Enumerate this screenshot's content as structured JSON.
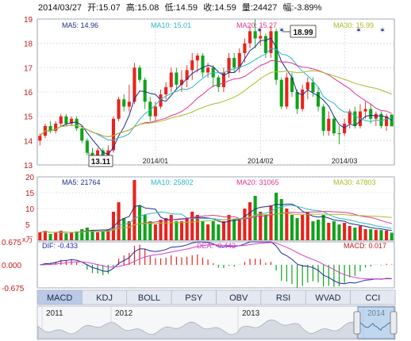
{
  "header": {
    "date": "2014/03/27",
    "open_label": "开:",
    "open": "15.07",
    "high_label": "高:",
    "high": "15.08",
    "low_label": "低:",
    "low": "14.59",
    "close_label": "收:",
    "close": "14.59",
    "volume_label": "量:",
    "volume": "24427",
    "change_label": "幅:",
    "change": "-3.89%"
  },
  "colors": {
    "up": "#e8231c",
    "down": "#10a31c",
    "ma5": "#1a2e8c",
    "ma10": "#2bb7c8",
    "ma20": "#e0358f",
    "ma30": "#aabb22",
    "grid": "#c7cbd6",
    "axis_text": "#c41a1a",
    "dif": "#1c2aa8",
    "dea": "#d940c8"
  },
  "price_panel": {
    "ma_labels": [
      {
        "label": "MA5: 14.96",
        "color": "#1a2e8c"
      },
      {
        "label": "MA10: 15.01",
        "color": "#2bb7c8"
      },
      {
        "label": "MA20: 15.27",
        "color": "#e0358f"
      },
      {
        "label": "MA30: 15.99",
        "color": "#aabb22"
      }
    ],
    "high_marker": "18.99",
    "low_marker": "13.11",
    "y_ticks": [
      "19",
      "18",
      "17",
      "16",
      "15",
      "14",
      "13"
    ],
    "x_ticks": [
      "2014/01",
      "2014/02",
      "2014/03"
    ]
  },
  "volume_panel": {
    "ma_labels": [
      {
        "label": "MA5: 21764",
        "color": "#1a2e8c"
      },
      {
        "label": "MA10: 25802",
        "color": "#2bb7c8"
      },
      {
        "label": "MA20: 31065",
        "color": "#e0358f"
      },
      {
        "label": "MA30: 47803",
        "color": "#aabb22"
      }
    ],
    "y_ticks": [
      "20",
      "15",
      "10",
      "5"
    ],
    "unit": "x万"
  },
  "macd_panel": {
    "dif_label": "DIF: -0.433",
    "dea_label": "DEA: -0.442",
    "macd_label": "MACD: 0.017",
    "y_ticks": [
      "0.675",
      "0.000",
      "-0.675"
    ]
  },
  "tabs": [
    {
      "label": "MACD",
      "active": true
    },
    {
      "label": "KDJ",
      "active": false
    },
    {
      "label": "BOLL",
      "active": false
    },
    {
      "label": "PSY",
      "active": false
    },
    {
      "label": "OBV",
      "active": false
    },
    {
      "label": "RSI",
      "active": false
    },
    {
      "label": "WVAD",
      "active": false
    },
    {
      "label": "CCI",
      "active": false
    }
  ],
  "timeline": {
    "years": [
      "2011",
      "2012",
      "2013",
      "2014"
    ]
  },
  "chart_data": {
    "type": "candlestick",
    "x_range": [
      "2013/12",
      "2014/03/27"
    ],
    "price_ylim": [
      13,
      19
    ],
    "candles": [
      [
        14.0,
        14.2,
        13.8,
        14.3,
        1
      ],
      [
        14.2,
        14.6,
        14.1,
        14.7,
        1
      ],
      [
        14.6,
        14.4,
        14.3,
        14.8,
        0
      ],
      [
        14.4,
        14.7,
        14.3,
        14.8,
        1
      ],
      [
        14.7,
        15.0,
        14.6,
        15.1,
        1
      ],
      [
        15.0,
        14.7,
        14.6,
        15.1,
        0
      ],
      [
        14.7,
        14.9,
        14.6,
        15.0,
        1
      ],
      [
        14.9,
        14.5,
        14.4,
        15.0,
        0
      ],
      [
        14.5,
        14.0,
        13.9,
        14.6,
        0
      ],
      [
        14.0,
        13.5,
        13.4,
        14.1,
        0
      ],
      [
        13.5,
        13.3,
        13.2,
        13.7,
        0
      ],
      [
        13.3,
        13.6,
        13.2,
        13.7,
        1
      ],
      [
        13.6,
        13.2,
        13.11,
        13.7,
        0
      ],
      [
        13.2,
        13.6,
        13.15,
        13.8,
        1
      ],
      [
        13.6,
        14.9,
        13.5,
        15.0,
        1
      ],
      [
        14.9,
        15.7,
        14.8,
        15.8,
        1
      ],
      [
        15.7,
        15.4,
        15.2,
        15.9,
        0
      ],
      [
        15.4,
        15.6,
        15.2,
        16.3,
        1
      ],
      [
        15.6,
        17.0,
        15.5,
        17.2,
        1
      ],
      [
        17.0,
        16.5,
        16.4,
        17.1,
        0
      ],
      [
        16.5,
        15.6,
        15.3,
        16.6,
        0
      ],
      [
        15.6,
        15.0,
        14.8,
        15.8,
        0
      ],
      [
        15.0,
        15.4,
        14.8,
        15.6,
        1
      ],
      [
        15.4,
        15.9,
        15.3,
        16.1,
        1
      ],
      [
        15.9,
        16.2,
        15.7,
        16.4,
        1
      ],
      [
        16.2,
        16.8,
        16.0,
        17.0,
        1
      ],
      [
        16.8,
        16.3,
        16.1,
        17.0,
        0
      ],
      [
        16.3,
        16.5,
        16.0,
        16.9,
        1
      ],
      [
        16.5,
        16.9,
        16.2,
        17.1,
        1
      ],
      [
        16.9,
        17.3,
        16.5,
        17.6,
        1
      ],
      [
        17.3,
        17.5,
        16.8,
        17.6,
        1
      ],
      [
        17.5,
        16.8,
        16.6,
        17.6,
        0
      ],
      [
        16.8,
        17.0,
        16.6,
        17.2,
        1
      ],
      [
        17.0,
        16.6,
        16.2,
        17.1,
        0
      ],
      [
        16.6,
        16.2,
        16.0,
        16.7,
        0
      ],
      [
        16.2,
        16.8,
        16.0,
        17.0,
        1
      ],
      [
        16.8,
        17.4,
        16.6,
        17.6,
        1
      ],
      [
        17.4,
        17.0,
        16.8,
        17.6,
        0
      ],
      [
        17.0,
        17.6,
        16.8,
        17.8,
        1
      ],
      [
        17.6,
        18.0,
        17.2,
        18.2,
        1
      ],
      [
        18.0,
        18.5,
        17.8,
        18.7,
        1
      ],
      [
        18.5,
        18.2,
        17.8,
        18.99,
        0
      ],
      [
        18.2,
        18.3,
        17.9,
        18.6,
        1
      ],
      [
        18.3,
        17.6,
        17.4,
        18.4,
        0
      ],
      [
        17.6,
        18.5,
        17.4,
        18.7,
        1
      ],
      [
        18.5,
        16.5,
        16.3,
        18.6,
        0
      ],
      [
        16.5,
        15.4,
        15.3,
        16.6,
        0
      ],
      [
        15.4,
        16.6,
        15.3,
        16.8,
        1
      ],
      [
        16.6,
        16.0,
        15.8,
        16.8,
        0
      ],
      [
        16.0,
        15.3,
        15.1,
        16.1,
        0
      ],
      [
        15.3,
        16.1,
        15.2,
        16.3,
        1
      ],
      [
        16.1,
        16.4,
        15.7,
        16.6,
        1
      ],
      [
        16.4,
        16.0,
        15.8,
        16.6,
        0
      ],
      [
        16.0,
        15.4,
        15.2,
        16.2,
        0
      ],
      [
        15.4,
        14.4,
        14.2,
        15.5,
        0
      ],
      [
        14.4,
        14.9,
        14.2,
        15.2,
        1
      ],
      [
        14.9,
        14.3,
        14.2,
        15.0,
        0
      ],
      [
        14.3,
        14.3,
        13.85,
        14.6,
        0
      ],
      [
        14.3,
        14.7,
        14.2,
        14.9,
        1
      ],
      [
        14.7,
        15.2,
        14.5,
        15.3,
        1
      ],
      [
        15.2,
        14.6,
        14.5,
        15.4,
        0
      ],
      [
        14.6,
        15.2,
        14.5,
        15.5,
        1
      ],
      [
        15.2,
        15.3,
        14.9,
        15.6,
        1
      ],
      [
        15.3,
        14.9,
        14.7,
        15.5,
        0
      ],
      [
        14.9,
        15.1,
        14.6,
        15.2,
        1
      ],
      [
        15.1,
        14.6,
        14.5,
        15.2,
        0
      ],
      [
        14.6,
        15.0,
        14.4,
        15.1,
        1
      ],
      [
        15.07,
        14.59,
        14.59,
        15.08,
        0
      ]
    ],
    "volume_ylim": [
      0,
      20
    ],
    "volume": [
      2.5,
      3,
      2,
      2.5,
      3,
      2.2,
      2.3,
      2.8,
      3.5,
      4,
      3.2,
      2.5,
      3,
      3.5,
      9,
      12,
      7,
      6,
      19,
      11,
      8,
      6,
      5,
      6.5,
      7,
      8,
      6,
      6,
      7,
      9,
      8,
      6,
      5,
      6,
      5,
      6,
      8,
      6.5,
      7,
      10,
      12,
      14,
      9,
      8,
      11,
      15,
      13,
      10,
      8,
      7,
      8,
      9,
      6,
      6.5,
      8,
      5.5,
      6,
      5,
      5.5,
      4.5,
      4,
      4.5,
      3.5,
      3.5,
      3.3,
      3.2,
      3.1,
      2.4
    ],
    "macd_ylim": [
      -0.675,
      0.675
    ]
  }
}
